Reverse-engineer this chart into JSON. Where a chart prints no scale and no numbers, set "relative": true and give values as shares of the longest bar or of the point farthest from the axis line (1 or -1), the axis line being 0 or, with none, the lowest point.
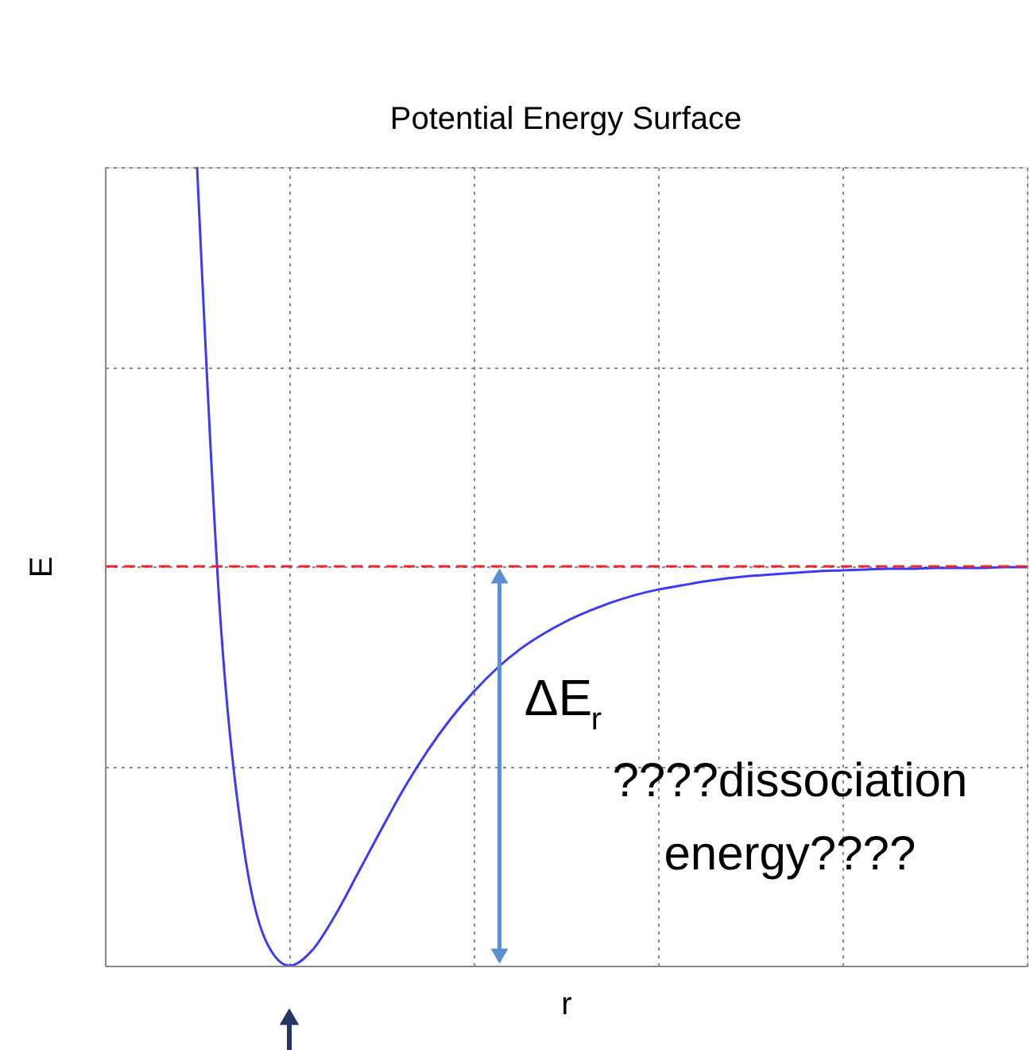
{
  "chart_data": {
    "type": "line",
    "title": "Potential Energy Surface",
    "xlabel": "r",
    "ylabel": "E",
    "categories": [
      null,
      null,
      null,
      null,
      null,
      null,
      null,
      null,
      null,
      null,
      null,
      null,
      null,
      null,
      null,
      null,
      null,
      null,
      null,
      null,
      null,
      null,
      null,
      null,
      null,
      null,
      null,
      null,
      null,
      null,
      null,
      null,
      null,
      null,
      null,
      null,
      null,
      null,
      null,
      null,
      null
    ],
    "relative": true,
    "series": [
      {
        "color": "#3b3bf5",
        "values": [
          null,
          null,
          null,
          null,
          1,
          0.439,
          0.153,
          0.03,
          0,
          0.0195,
          0.0635,
          0.117,
          0.171,
          0.223,
          0.269,
          0.309,
          0.343,
          0.372,
          0.396,
          0.415,
          0.431,
          0.444,
          0.455,
          0.464,
          0.471,
          0.476,
          0.481,
          0.485,
          0.488,
          0.49,
          0.492,
          0.494,
          0.495,
          0.496,
          0.497,
          0.497,
          0.498,
          0.498,
          0.498,
          0.499,
          0.499
        ]
      }
    ],
    "ref_lines": [
      {
        "axis": "y",
        "value": 0.5,
        "color": "#e8282b",
        "line_style": "dashed"
      }
    ],
    "annotations": [
      "ΔE$_{r}$",
      "????dissociation energy????"
    ],
    "grid": true,
    "line_style": "solid",
    "marker": "none"
  }
}
